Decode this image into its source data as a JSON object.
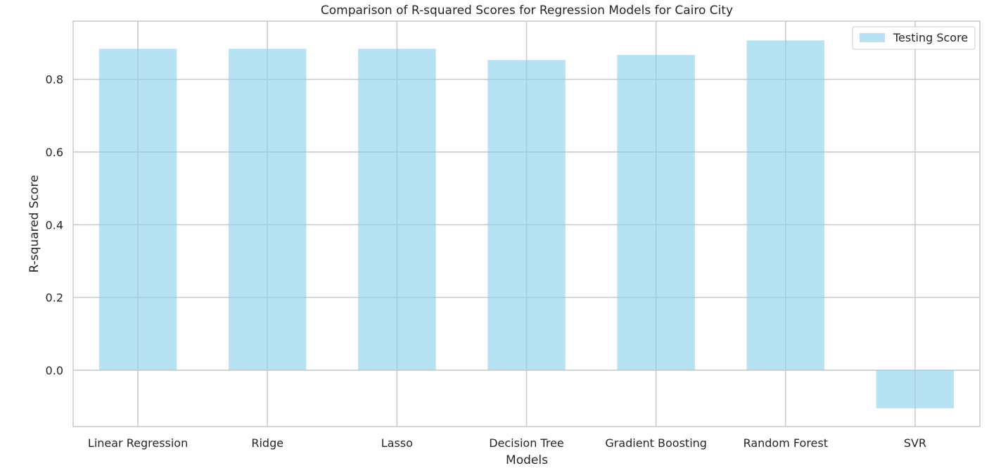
{
  "chart_data": {
    "type": "bar",
    "title": "Comparison of R-squared Scores for Regression Models for Cairo City",
    "xlabel": "Models",
    "ylabel": "R-squared Score",
    "categories": [
      "Linear Regression",
      "Ridge",
      "Lasso",
      "Decision Tree",
      "Gradient Boosting",
      "Random Forest",
      "SVR"
    ],
    "series": [
      {
        "name": "Testing Score",
        "values": [
          0.884,
          0.884,
          0.884,
          0.853,
          0.867,
          0.907,
          -0.105
        ],
        "color": "#87ceeb"
      }
    ],
    "ylim": [
      -0.155,
      0.96
    ],
    "yticks": [
      0.0,
      0.2,
      0.4,
      0.6,
      0.8
    ],
    "ytick_labels": [
      "0.0",
      "0.2",
      "0.4",
      "0.6",
      "0.8"
    ],
    "grid": true,
    "legend_position": "top-right"
  }
}
